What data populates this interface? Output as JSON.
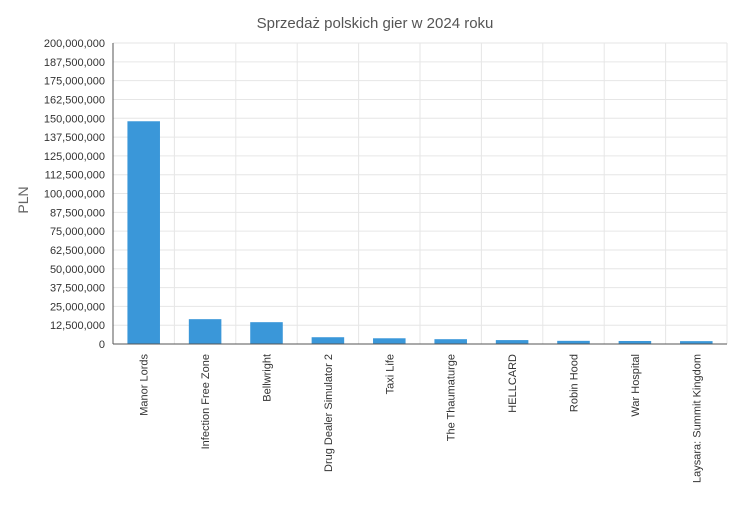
{
  "chart_data": {
    "type": "bar",
    "title": "Sprzedaż polskich gier w 2024 roku",
    "ylabel": "PLN",
    "xlabel": "",
    "categories": [
      "Manor Lords",
      "Infection Free Zone",
      "Bellwright",
      "Drug Dealer Simulator 2",
      "Taxi Life",
      "The Thaumaturge",
      "HELLCARD",
      "Robin Hood",
      "War Hospital",
      "Laysara: Summit Kingdom"
    ],
    "values": [
      148000000,
      16500000,
      14500000,
      4500000,
      3800000,
      3200000,
      2600000,
      2100000,
      2000000,
      1900000
    ],
    "ylim": [
      0,
      200000000
    ],
    "yticks": [
      0,
      12500000,
      25000000,
      37500000,
      50000000,
      62500000,
      75000000,
      87500000,
      100000000,
      112500000,
      125000000,
      137500000,
      150000000,
      162500000,
      175000000,
      187500000,
      200000000
    ],
    "ytick_labels": [
      "0",
      "12,500,000",
      "25,000,000",
      "37,500,000",
      "50,000,000",
      "62,500,000",
      "75,000,000",
      "87,500,000",
      "100,000,000",
      "112,500,000",
      "125,000,000",
      "137,500,000",
      "150,000,000",
      "162,500,000",
      "175,000,000",
      "187,500,000",
      "200,000,000"
    ],
    "bar_color": "#3a97d9",
    "grid": true
  }
}
